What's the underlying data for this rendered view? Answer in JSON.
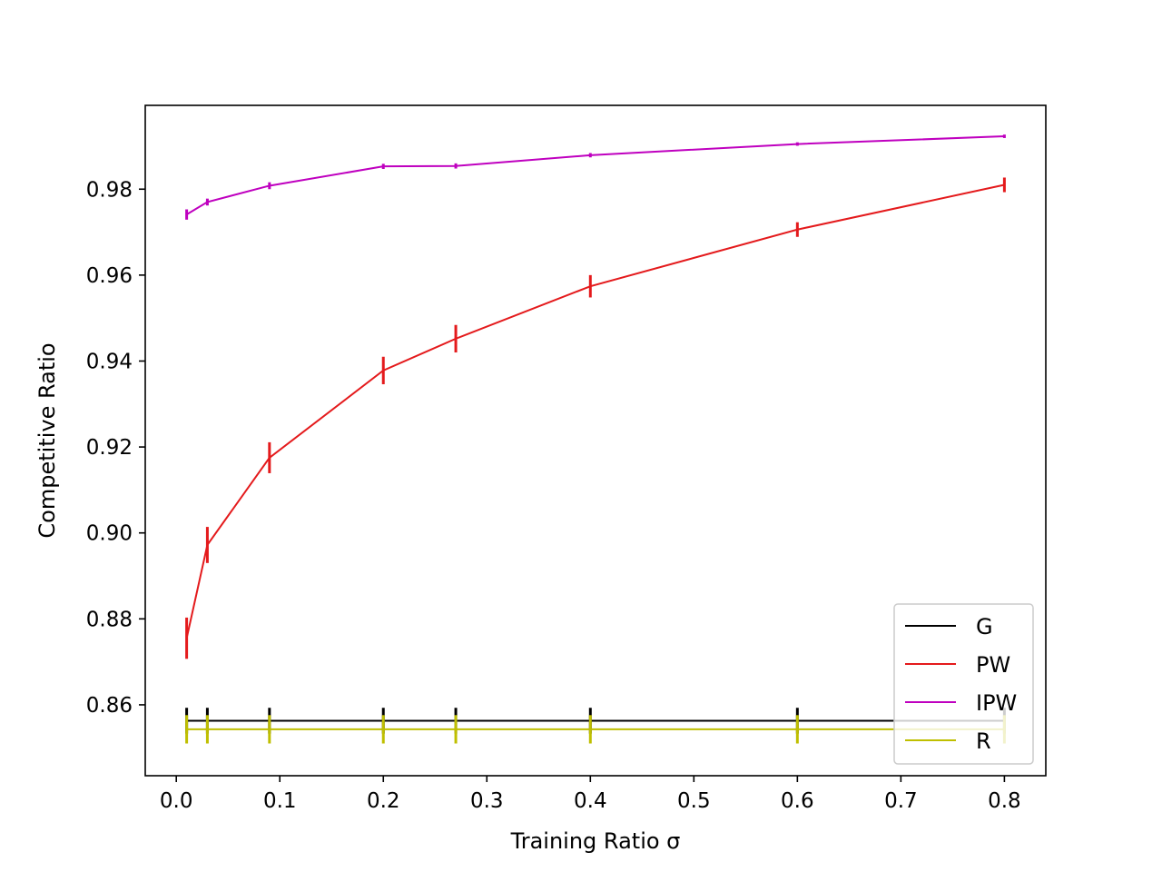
{
  "chart_data": {
    "type": "line",
    "title": "",
    "xlabel": "Training Ratio σ",
    "ylabel": "Competitive Ratio",
    "xlim": [
      -0.03,
      0.84
    ],
    "ylim": [
      0.8435,
      0.9995
    ],
    "xticks": [
      0.0,
      0.1,
      0.2,
      0.3,
      0.4,
      0.5,
      0.6,
      0.7,
      0.8
    ],
    "xtick_labels": [
      "0.0",
      "0.1",
      "0.2",
      "0.3",
      "0.4",
      "0.5",
      "0.6",
      "0.7",
      "0.8"
    ],
    "yticks": [
      0.86,
      0.88,
      0.9,
      0.92,
      0.94,
      0.96,
      0.98
    ],
    "ytick_labels": [
      "0.86",
      "0.88",
      "0.90",
      "0.92",
      "0.94",
      "0.96",
      "0.98"
    ],
    "grid": false,
    "legend_position": "lower-right",
    "x": [
      0.01,
      0.03,
      0.09,
      0.2,
      0.27,
      0.4,
      0.6,
      0.8
    ],
    "series": [
      {
        "name": "G",
        "color": "#000000",
        "values": [
          0.8563,
          0.8563,
          0.8563,
          0.8563,
          0.8563,
          0.8563,
          0.8563,
          0.8563
        ],
        "errors": [
          0.003,
          0.003,
          0.003,
          0.003,
          0.003,
          0.003,
          0.003,
          0.003
        ]
      },
      {
        "name": "PW",
        "color": "#e41a1c",
        "values": [
          0.8755,
          0.8972,
          0.9175,
          0.9378,
          0.9452,
          0.9574,
          0.9706,
          0.981
        ],
        "errors": [
          0.0048,
          0.0042,
          0.0036,
          0.0032,
          0.0032,
          0.0026,
          0.0017,
          0.0017
        ]
      },
      {
        "name": "IPW",
        "color": "#bf00bf",
        "values": [
          0.9741,
          0.977,
          0.9808,
          0.9853,
          0.9854,
          0.9879,
          0.9905,
          0.9923
        ],
        "errors": [
          0.0012,
          0.0008,
          0.0008,
          0.0006,
          0.0006,
          0.0005,
          0.0004,
          0.0004
        ]
      },
      {
        "name": "R",
        "color": "#bfbf00",
        "values": [
          0.8543,
          0.8543,
          0.8543,
          0.8543,
          0.8543,
          0.8543,
          0.8543,
          0.8543
        ],
        "errors": [
          0.0033,
          0.0033,
          0.0033,
          0.0033,
          0.0033,
          0.0033,
          0.0033,
          0.0033
        ]
      }
    ]
  }
}
